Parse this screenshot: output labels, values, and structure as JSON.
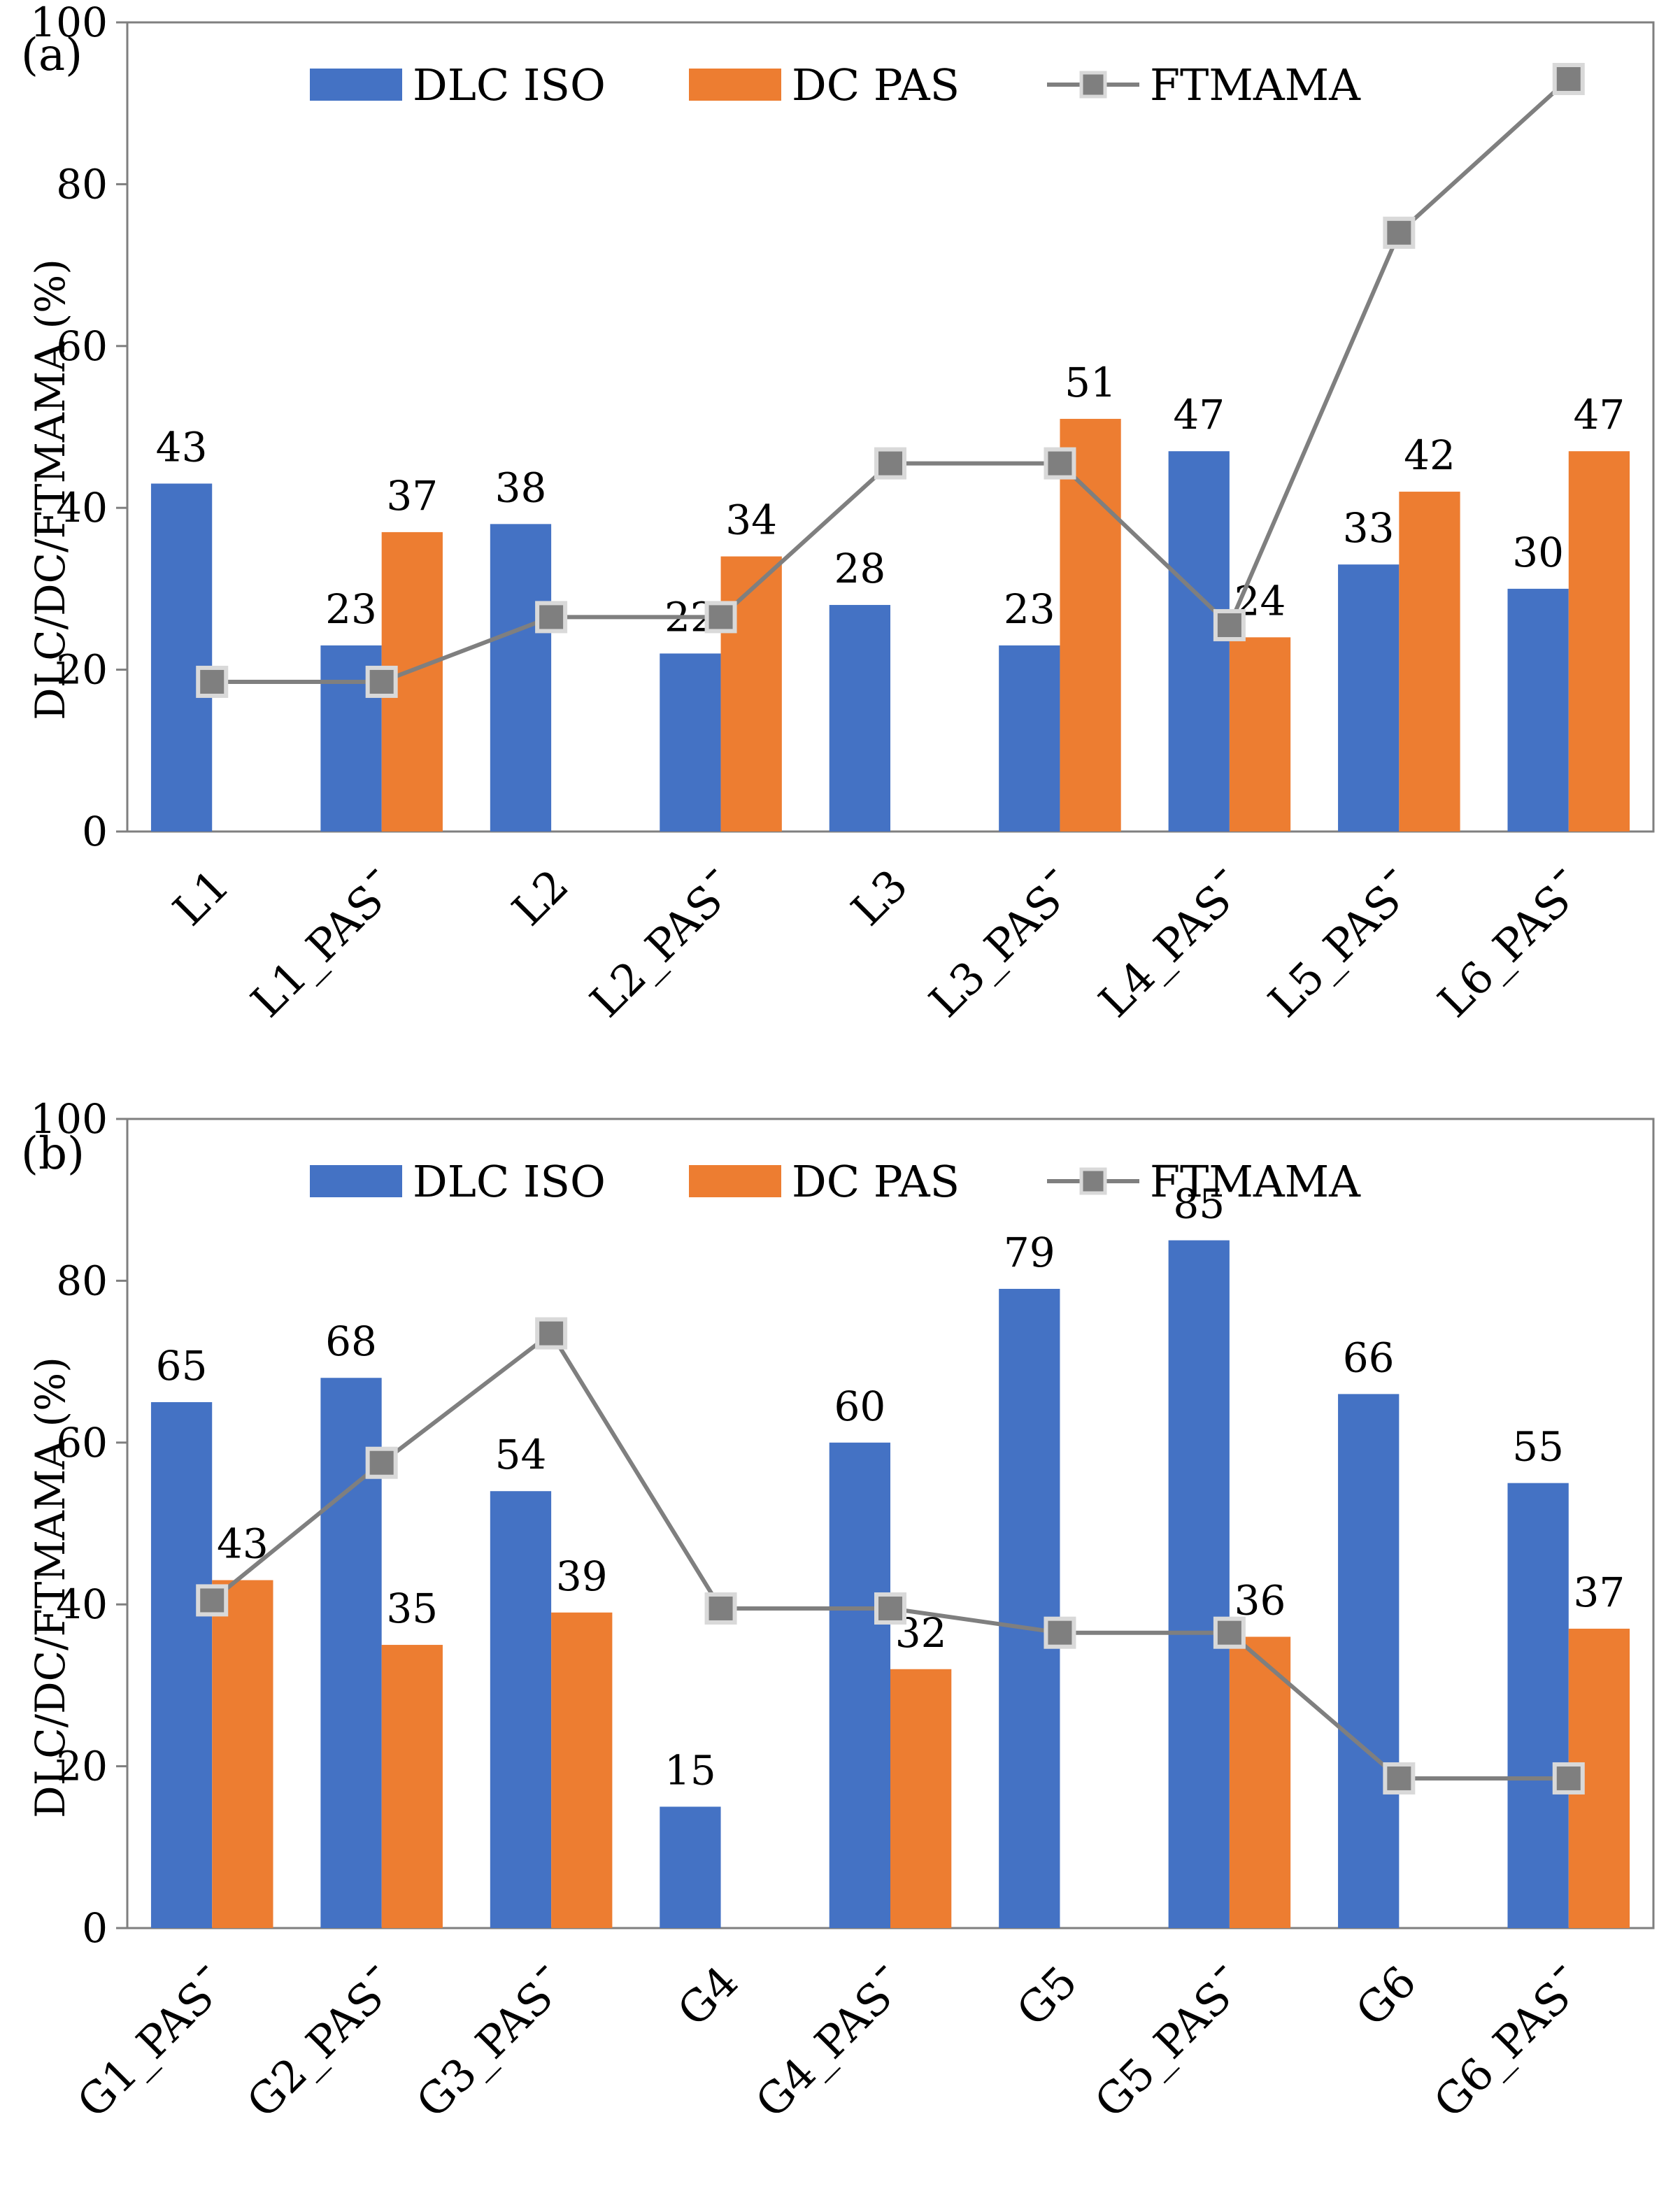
{
  "colors": {
    "dlc_iso": "#4472C4",
    "dc_pas": "#ED7D31",
    "ftmama_line": "#7F7F7F",
    "ftmama_marker_fill": "#7F7F7F",
    "ftmama_marker_edge": "#D9D9D9",
    "axis": "#7F7F7F"
  },
  "chart_data": [
    {
      "type": "bar",
      "panel_label": "(a)",
      "ylabel": "DLC/DC/FTMAMA (%)",
      "ylim": [
        0,
        100
      ],
      "yticks": [
        0,
        20,
        40,
        60,
        80,
        100
      ],
      "legend_position": "top",
      "categories": [
        "L1",
        "L1_PAS¯",
        "L2",
        "L2_PAS¯",
        "L3",
        "L3_PAS¯",
        "L4_PAS¯",
        "L5_PAS¯",
        "L6_PAS¯"
      ],
      "series": [
        {
          "name": "DLC ISO",
          "kind": "bar",
          "values": [
            43,
            23,
            38,
            22,
            28,
            23,
            47,
            33,
            30
          ]
        },
        {
          "name": "DC PAS",
          "kind": "bar",
          "values": [
            null,
            37,
            null,
            34,
            null,
            51,
            24,
            42,
            47
          ]
        },
        {
          "name": "FTMAMA",
          "kind": "line",
          "values": [
            18.5,
            18.5,
            26.5,
            26.5,
            45.5,
            45.5,
            25.5,
            74,
            93
          ]
        }
      ],
      "data_labels": {
        "DLC ISO": [
          "43",
          "23",
          "38",
          "22",
          "28",
          "23",
          "47",
          "33",
          "30"
        ],
        "DC PAS": [
          null,
          "37",
          null,
          "34",
          null,
          "51",
          "24",
          "42",
          "47"
        ]
      }
    },
    {
      "type": "bar",
      "panel_label": "(b)",
      "ylabel": "DLC/DC/FTMAMA (%)",
      "ylim": [
        0,
        100
      ],
      "yticks": [
        0,
        20,
        40,
        60,
        80,
        100
      ],
      "legend_position": "top",
      "categories": [
        "G1_PAS¯",
        "G2_PAS¯",
        "G3_PAS¯",
        "G4",
        "G4_PAS¯",
        "G5",
        "G5_PAS¯",
        "G6",
        "G6_PAS¯"
      ],
      "series": [
        {
          "name": "DLC ISO",
          "kind": "bar",
          "values": [
            65,
            68,
            54,
            15,
            60,
            79,
            85,
            66,
            55
          ]
        },
        {
          "name": "DC PAS",
          "kind": "bar",
          "values": [
            43,
            35,
            39,
            null,
            32,
            null,
            36,
            null,
            37
          ]
        },
        {
          "name": "FTMAMA",
          "kind": "line",
          "values": [
            40.5,
            57.5,
            73.5,
            39.5,
            39.5,
            36.5,
            36.5,
            18.5,
            18.5
          ]
        }
      ],
      "data_labels": {
        "DLC ISO": [
          "65",
          "68",
          "54",
          "15",
          "60",
          "79",
          "85",
          "66",
          "55"
        ],
        "DC PAS": [
          "43",
          "35",
          "39",
          null,
          "32",
          null,
          "36",
          null,
          "37"
        ]
      }
    }
  ]
}
